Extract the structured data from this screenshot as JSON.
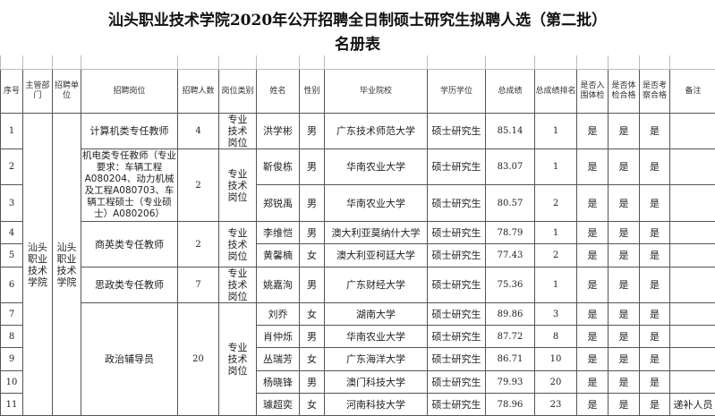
{
  "title_line1": "汕头职业技术学院2020年公开招聘全日制硕士研究生拟聘人选（第二批）",
  "title_line2": "名册表",
  "headers": [
    "序号",
    "主管部门",
    "招聘单位",
    "招聘岗位",
    "招聘人数",
    "岗位类别",
    "姓名",
    "性别",
    "毕业院校",
    "学历学位",
    "总成绩",
    "总成绩排名",
    "是否入围体检",
    "是否体检合格",
    "是否考察合格",
    "备注"
  ],
  "department": "汕头职业技术学院",
  "unit": "汕头职业技术学院",
  "positions": [
    {
      "name": "计算机类专任教师",
      "count": "4",
      "category": "专业技术岗位"
    },
    {
      "name": "机电类专任教师（专业要求：车辆工程A080204、动力机械及工程A080703、车辆工程硕士（专业硕士）A080206）",
      "count": "2",
      "category": "专业技术岗位"
    },
    {
      "name": "商英类专任教师",
      "count": "2",
      "category": "专业技术岗位"
    },
    {
      "name": "思政类专任教师",
      "count": "7",
      "category": "专业技术岗位"
    },
    {
      "name": "政治辅导员",
      "count": "20",
      "category": "专业技术岗位"
    }
  ],
  "rows": [
    {
      "no": "1",
      "name": "洪学彬",
      "gender": "男",
      "school": "广东技术师范大学",
      "degree": "硕士研究生",
      "score": "85.14",
      "rank": "1",
      "shortlist": "是",
      "medical": "是",
      "inspection": "是",
      "note": ""
    },
    {
      "no": "2",
      "name": "靳俊栋",
      "gender": "男",
      "school": "华南农业大学",
      "degree": "硕士研究生",
      "score": "83.07",
      "rank": "1",
      "shortlist": "是",
      "medical": "是",
      "inspection": "是",
      "note": ""
    },
    {
      "no": "3",
      "name": "郑锐禹",
      "gender": "男",
      "school": "华南农业大学",
      "degree": "硕士研究生",
      "score": "80.57",
      "rank": "2",
      "shortlist": "是",
      "medical": "是",
      "inspection": "是",
      "note": ""
    },
    {
      "no": "4",
      "name": "李维恺",
      "gender": "男",
      "school": "澳大利亚莫纳什大学",
      "degree": "硕士研究生",
      "score": "78.79",
      "rank": "1",
      "shortlist": "是",
      "medical": "是",
      "inspection": "是",
      "note": ""
    },
    {
      "no": "5",
      "name": "黄馨楠",
      "gender": "女",
      "school": "澳大利亚柯廷大学",
      "degree": "硕士研究生",
      "score": "77.43",
      "rank": "2",
      "shortlist": "是",
      "medical": "是",
      "inspection": "是",
      "note": ""
    },
    {
      "no": "6",
      "name": "姚嘉洵",
      "gender": "男",
      "school": "广东财经大学",
      "degree": "硕士研究生",
      "score": "75.36",
      "rank": "1",
      "shortlist": "是",
      "medical": "是",
      "inspection": "是",
      "note": ""
    },
    {
      "no": "7",
      "name": "刘乔",
      "gender": "女",
      "school": "湖南大学",
      "degree": "硕士研究生",
      "score": "89.86",
      "rank": "3",
      "shortlist": "是",
      "medical": "是",
      "inspection": "是",
      "note": ""
    },
    {
      "no": "8",
      "name": "肖仲烁",
      "gender": "男",
      "school": "华南农业大学",
      "degree": "硕士研究生",
      "score": "87.72",
      "rank": "8",
      "shortlist": "是",
      "medical": "是",
      "inspection": "是",
      "note": ""
    },
    {
      "no": "9",
      "name": "丛瑞芳",
      "gender": "女",
      "school": "广东海洋大学",
      "degree": "硕士研究生",
      "score": "86.71",
      "rank": "10",
      "shortlist": "是",
      "medical": "是",
      "inspection": "是",
      "note": ""
    },
    {
      "no": "10",
      "name": "杨晓锋",
      "gender": "男",
      "school": "澳门科技大学",
      "degree": "硕士研究生",
      "score": "79.93",
      "rank": "20",
      "shortlist": "是",
      "medical": "是",
      "inspection": "是",
      "note": ""
    },
    {
      "no": "11",
      "name": "璩超奕",
      "gender": "女",
      "school": "河南科技大学",
      "degree": "硕士研究生",
      "score": "78.96",
      "rank": "23",
      "shortlist": "是",
      "medical": "是",
      "inspection": "是",
      "note": "递补人员"
    }
  ]
}
